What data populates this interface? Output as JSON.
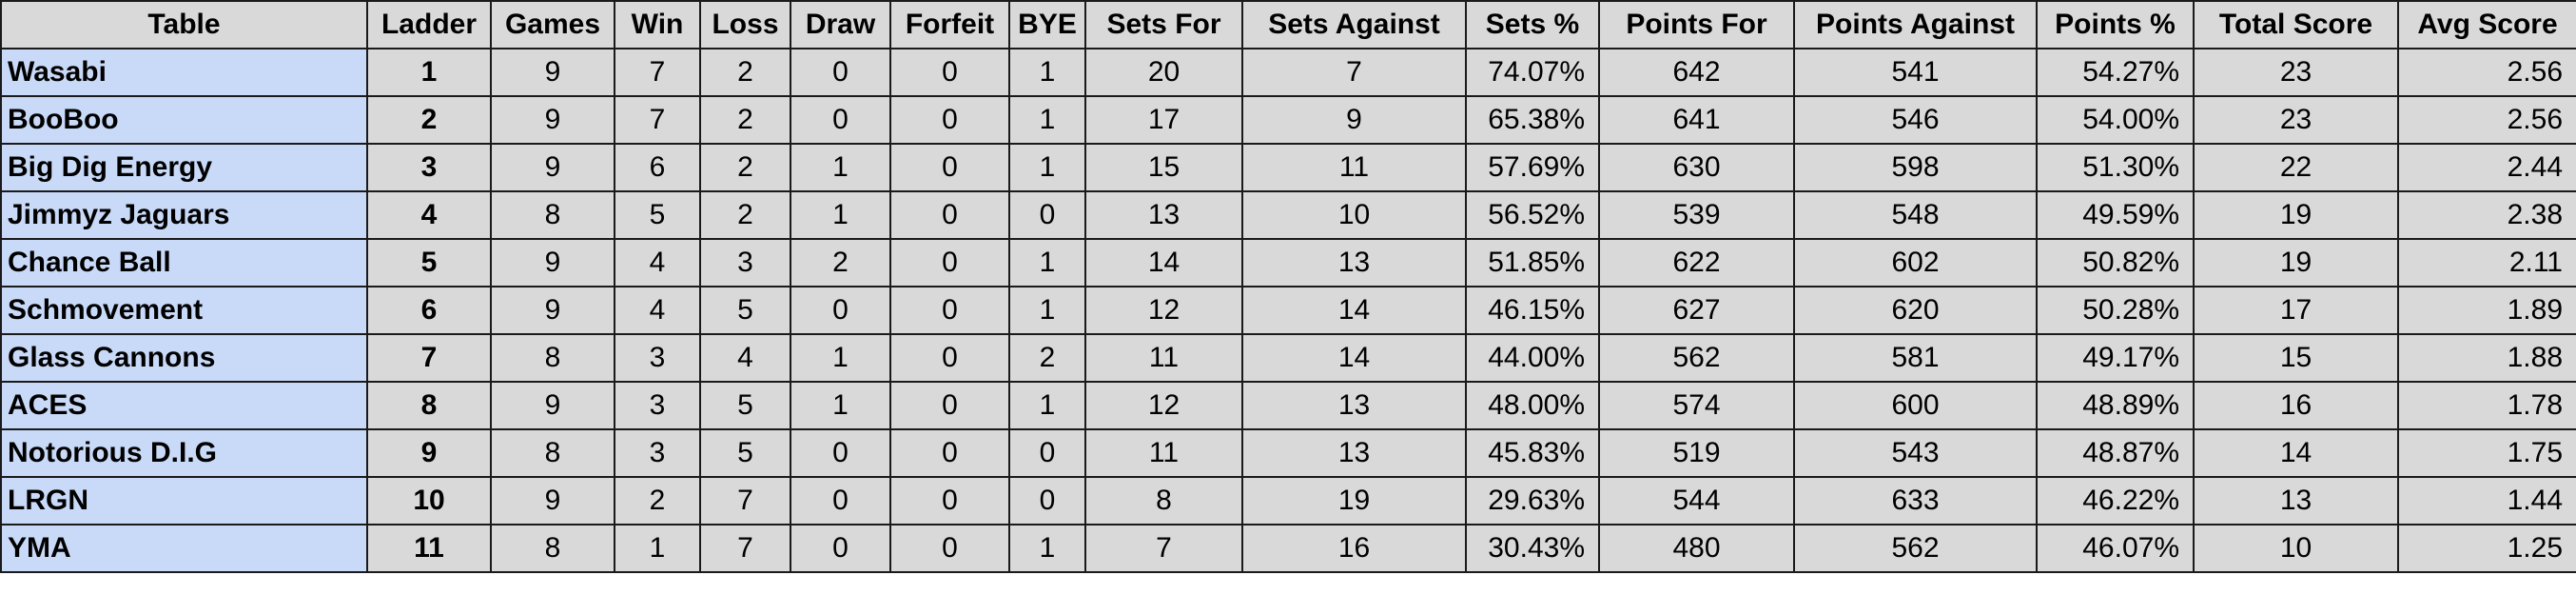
{
  "table": {
    "header": [
      "Table",
      "Ladder",
      "Games",
      "Win",
      "Loss",
      "Draw",
      "Forfeit",
      "BYE",
      "Sets For",
      "Sets Against",
      "Sets %",
      "Points For",
      "Points Against",
      "Points %",
      "Total Score",
      "Avg Score"
    ],
    "rows": [
      [
        "Wasabi",
        "1",
        "9",
        "7",
        "2",
        "0",
        "0",
        "1",
        "20",
        "7",
        "74.07%",
        "642",
        "541",
        "54.27%",
        "23",
        "2.56"
      ],
      [
        "BooBoo",
        "2",
        "9",
        "7",
        "2",
        "0",
        "0",
        "1",
        "17",
        "9",
        "65.38%",
        "641",
        "546",
        "54.00%",
        "23",
        "2.56"
      ],
      [
        "Big Dig Energy",
        "3",
        "9",
        "6",
        "2",
        "1",
        "0",
        "1",
        "15",
        "11",
        "57.69%",
        "630",
        "598",
        "51.30%",
        "22",
        "2.44"
      ],
      [
        "Jimmyz Jaguars",
        "4",
        "8",
        "5",
        "2",
        "1",
        "0",
        "0",
        "13",
        "10",
        "56.52%",
        "539",
        "548",
        "49.59%",
        "19",
        "2.38"
      ],
      [
        "Chance Ball",
        "5",
        "9",
        "4",
        "3",
        "2",
        "0",
        "1",
        "14",
        "13",
        "51.85%",
        "622",
        "602",
        "50.82%",
        "19",
        "2.11"
      ],
      [
        "Schmovement",
        "6",
        "9",
        "4",
        "5",
        "0",
        "0",
        "1",
        "12",
        "14",
        "46.15%",
        "627",
        "620",
        "50.28%",
        "17",
        "1.89"
      ],
      [
        "Glass Cannons",
        "7",
        "8",
        "3",
        "4",
        "1",
        "0",
        "2",
        "11",
        "14",
        "44.00%",
        "562",
        "581",
        "49.17%",
        "15",
        "1.88"
      ],
      [
        "ACES",
        "8",
        "9",
        "3",
        "5",
        "1",
        "0",
        "1",
        "12",
        "13",
        "48.00%",
        "574",
        "600",
        "48.89%",
        "16",
        "1.78"
      ],
      [
        "Notorious D.I.G",
        "9",
        "8",
        "3",
        "5",
        "0",
        "0",
        "0",
        "11",
        "13",
        "45.83%",
        "519",
        "543",
        "48.87%",
        "14",
        "1.75"
      ],
      [
        "LRGN",
        "10",
        "9",
        "2",
        "7",
        "0",
        "0",
        "0",
        "8",
        "19",
        "29.63%",
        "544",
        "633",
        "46.22%",
        "13",
        "1.44"
      ],
      [
        "YMA",
        "11",
        "8",
        "1",
        "7",
        "0",
        "0",
        "1",
        "7",
        "16",
        "30.43%",
        "480",
        "562",
        "46.07%",
        "10",
        "1.25"
      ]
    ]
  }
}
